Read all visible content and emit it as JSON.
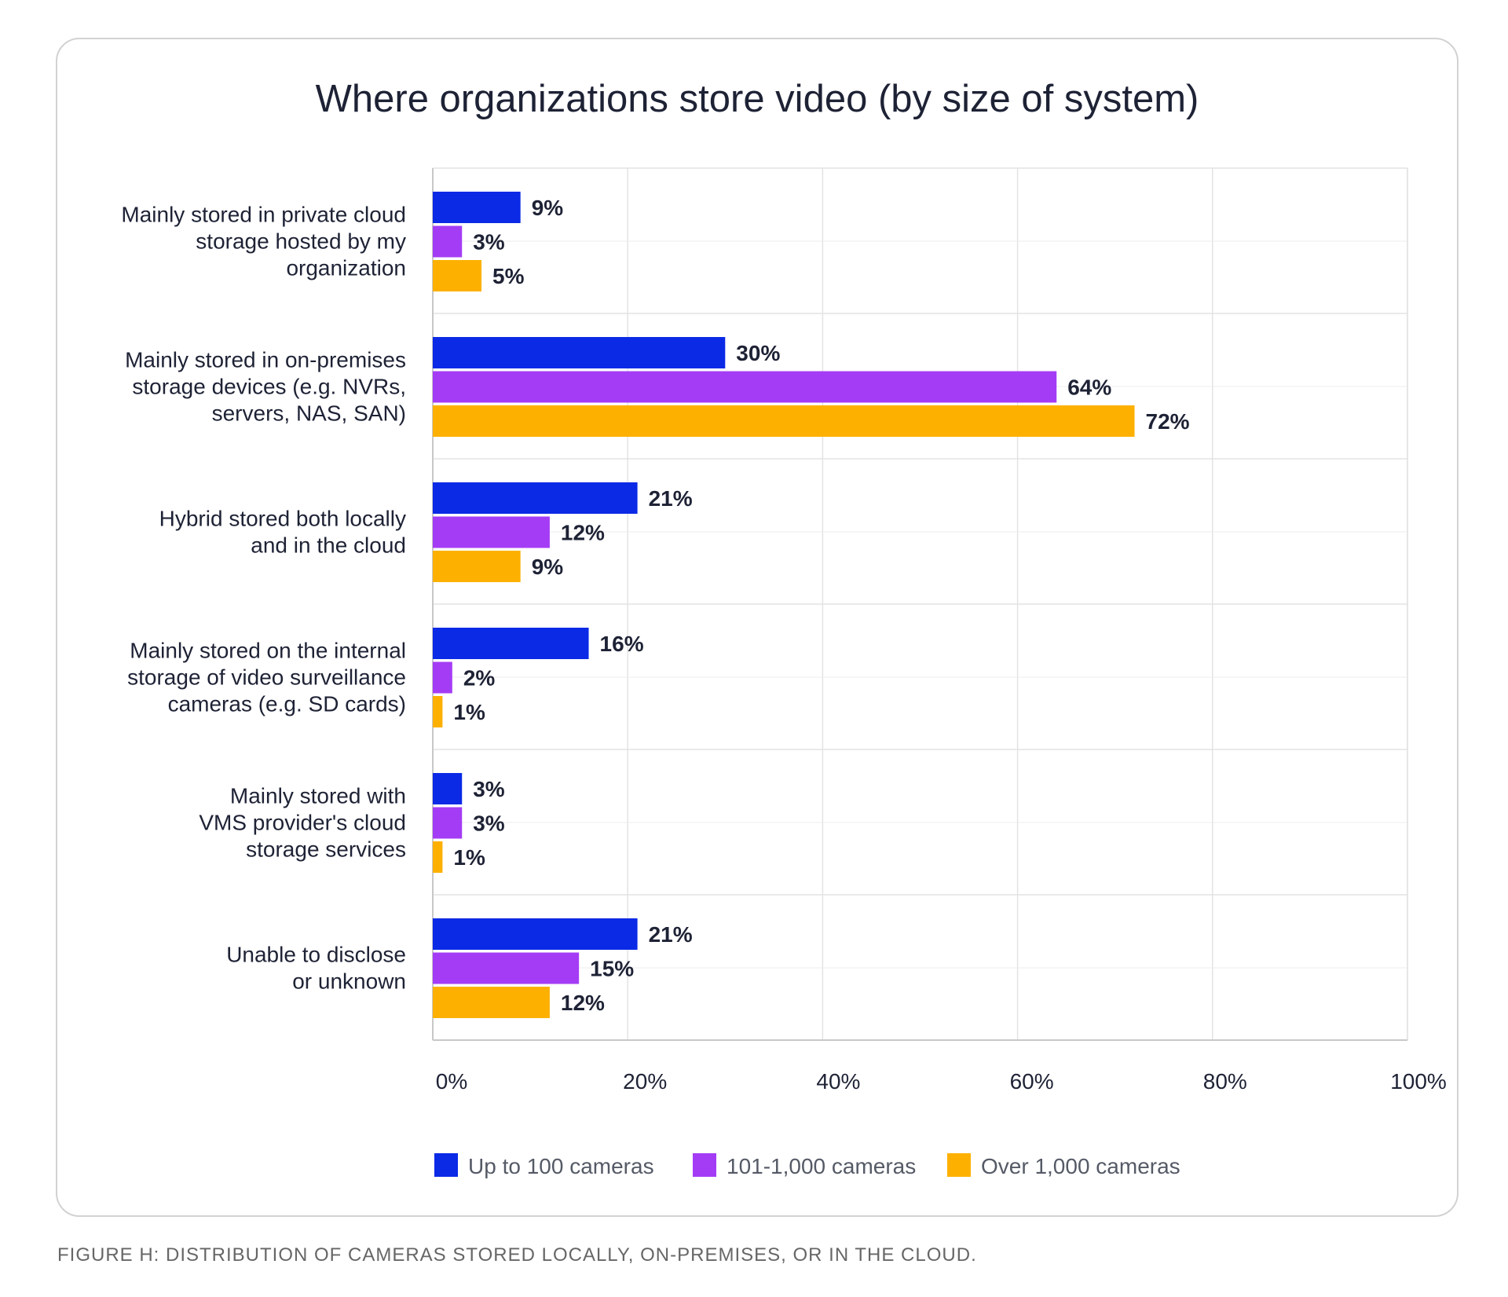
{
  "chart_data": {
    "type": "bar",
    "orientation": "horizontal",
    "title": "Where organizations store video (by size of system)",
    "categories": [
      [
        "Mainly stored in private cloud",
        "storage hosted by my",
        "organization"
      ],
      [
        "Mainly stored in on-premises",
        "storage devices (e.g. NVRs,",
        "servers, NAS, SAN)"
      ],
      [
        "Hybrid stored both locally",
        "and in the cloud"
      ],
      [
        "Mainly stored on the internal",
        "storage of video surveillance",
        "cameras (e.g. SD cards)"
      ],
      [
        "Mainly stored with",
        "VMS provider's cloud",
        "storage services"
      ],
      [
        "Unable to disclose",
        "or unknown"
      ]
    ],
    "series": [
      {
        "name": "Up to 100 cameras",
        "color": "#0a2ae6",
        "values": [
          9,
          30,
          21,
          16,
          3,
          21
        ]
      },
      {
        "name": "101-1,000 cameras",
        "color": "#a43cf5",
        "values": [
          3,
          64,
          12,
          2,
          3,
          15
        ]
      },
      {
        "name": "Over 1,000 cameras",
        "color": "#fdb000",
        "values": [
          5,
          72,
          9,
          1,
          1,
          12
        ]
      }
    ],
    "xlim": [
      0,
      100
    ],
    "xticks": [
      0,
      20,
      40,
      60,
      80,
      100
    ],
    "xtick_labels": [
      "0%",
      "20%",
      "40%",
      "60%",
      "80%",
      "100%"
    ],
    "value_suffix": "%",
    "grid": true,
    "legend_position": "bottom"
  },
  "caption": "FIGURE H: DISTRIBUTION OF CAMERAS STORED LOCALLY, ON-PREMISES, OR IN THE CLOUD."
}
